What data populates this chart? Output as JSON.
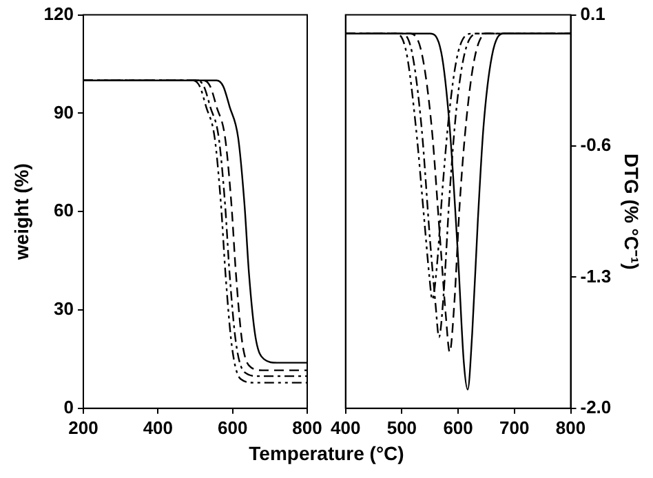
{
  "chart_data": [
    {
      "type": "line",
      "xlabel": "Temperature (°C)",
      "ylabel": "weight (%)",
      "xlim": [
        200,
        800
      ],
      "xticks": [
        200,
        400,
        600,
        800
      ],
      "ylim": [
        0,
        120
      ],
      "yticks": [
        0,
        30,
        60,
        90,
        120
      ],
      "grid": false,
      "legend": false,
      "marker": "none",
      "series": [
        {
          "color": "#000000",
          "line_style": "solid",
          "x": [
            200,
            540,
            557,
            575,
            592,
            615,
            632,
            644,
            661,
            684,
            719,
            800
          ],
          "values": [
            100,
            100,
            100,
            98.2,
            92,
            82.5,
            62,
            41,
            22,
            15,
            13.9,
            13.9
          ]
        },
        {
          "color": "#000000",
          "line_style": "dashed",
          "x": [
            200,
            522,
            540,
            557,
            580,
            597,
            609,
            626,
            649,
            680,
            800
          ],
          "values": [
            100,
            100,
            98.2,
            92,
            82.5,
            62,
            41,
            20,
            12.5,
            11.6,
            11.6
          ]
        },
        {
          "color": "#000000",
          "line_style": "dashdot",
          "x": [
            200,
            505,
            523,
            540,
            563,
            580,
            592,
            609,
            632,
            670,
            800
          ],
          "values": [
            100,
            100,
            98.2,
            92,
            82.5,
            62,
            41,
            20,
            11,
            9.8,
            9.8
          ]
        },
        {
          "color": "#000000",
          "line_style": "dashdotdot",
          "x": [
            200,
            494,
            512,
            529,
            552,
            569,
            581,
            598,
            621,
            660,
            800
          ],
          "values": [
            100,
            100,
            98.2,
            92,
            82.5,
            62,
            41,
            19,
            9,
            7.8,
            7.8
          ]
        }
      ]
    },
    {
      "type": "line",
      "y2label": "DTG (% °C⁻¹)",
      "xlim": [
        400,
        800
      ],
      "xticks": [
        400,
        500,
        600,
        700,
        800
      ],
      "y2lim": [
        -2.0,
        0.1
      ],
      "y2ticks": [
        0.1,
        -0.6,
        -1.3,
        {
          "value": -2.0,
          "label": "-2.0"
        }
      ],
      "grid": false,
      "legend": false,
      "marker": "none",
      "series": [
        {
          "color": "#000000",
          "axis": "y2",
          "line_style": "solid",
          "x": [
            400,
            550,
            570,
            585,
            600,
            610,
            617,
            625,
            635,
            645,
            660,
            680,
            800
          ],
          "values": [
            0,
            0,
            -0.1,
            -0.5,
            -1.2,
            -1.75,
            -1.9,
            -1.6,
            -1.0,
            -0.5,
            -0.12,
            0,
            0
          ]
        },
        {
          "color": "#000000",
          "axis": "y2",
          "line_style": "dashed",
          "x": [
            400,
            515,
            535,
            553,
            568,
            578,
            585,
            593,
            603,
            615,
            630,
            650,
            800
          ],
          "values": [
            0,
            0,
            -0.1,
            -0.5,
            -1.1,
            -1.5,
            -1.7,
            -1.45,
            -0.9,
            -0.45,
            -0.12,
            0,
            0
          ]
        },
        {
          "color": "#000000",
          "axis": "y2",
          "line_style": "dashdot",
          "x": [
            400,
            500,
            518,
            535,
            550,
            560,
            566,
            574,
            585,
            597,
            612,
            635,
            800
          ],
          "values": [
            0,
            0,
            -0.1,
            -0.5,
            -1.1,
            -1.45,
            -1.62,
            -1.4,
            -0.85,
            -0.4,
            -0.1,
            0,
            0
          ]
        },
        {
          "color": "#000000",
          "axis": "y2",
          "line_style": "dashdotdot",
          "x": [
            400,
            490,
            508,
            525,
            540,
            549,
            554,
            562,
            573,
            585,
            600,
            625,
            800
          ],
          "values": [
            0,
            0,
            -0.1,
            -0.5,
            -1.0,
            -1.3,
            -1.42,
            -1.25,
            -0.8,
            -0.4,
            -0.1,
            0,
            0
          ]
        }
      ]
    }
  ]
}
